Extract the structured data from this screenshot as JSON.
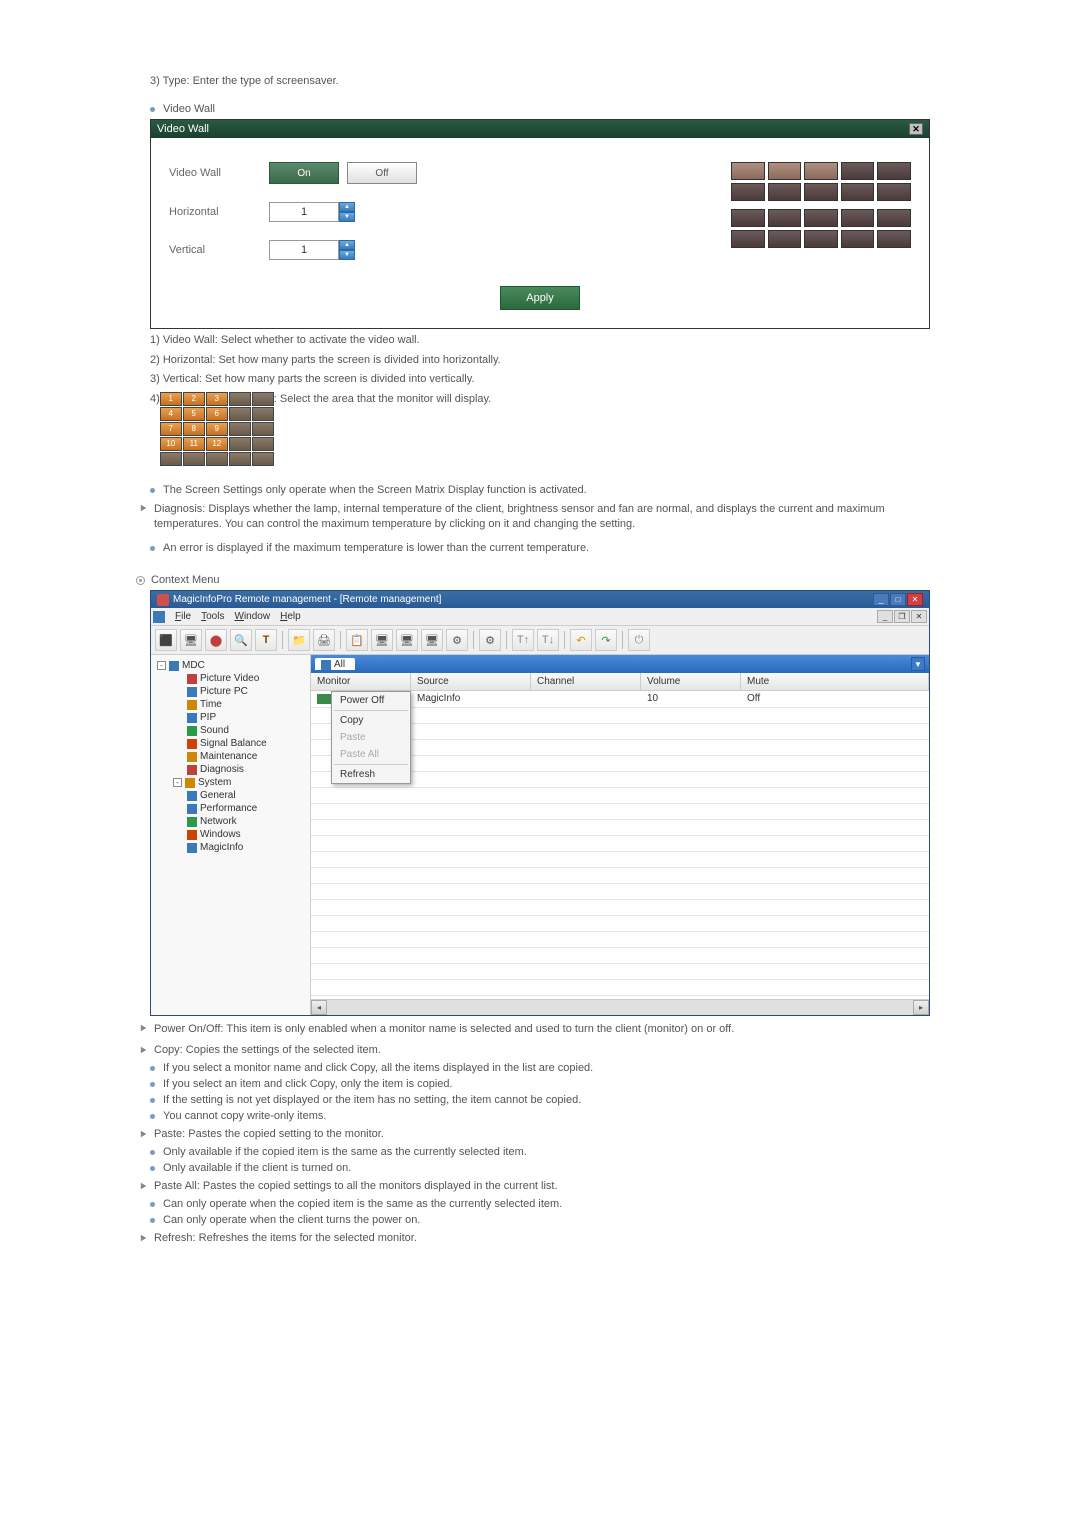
{
  "intro_text": "3) Type: Enter the type of screensaver.",
  "video_wall": {
    "section_label": "Video Wall",
    "dialog_title": "Video Wall",
    "label_vw": "Video Wall",
    "label_h": "Horizontal",
    "label_v": "Vertical",
    "btn_on": "On",
    "btn_off": "Off",
    "val_h": "1",
    "val_v": "1",
    "btn_apply": "Apply",
    "notes": {
      "n1": "1) Video Wall: Select whether to activate the video wall.",
      "n2": "2) Horizontal: Set how many parts the screen is divided into horizontally.",
      "n3": "3) Vertical: Set how many parts the screen is divided into vertically.",
      "n4_pre": "4) ",
      "n4_post": " : Select the area that the monitor will display."
    },
    "grid_numbers": [
      "1",
      "2",
      "3",
      "",
      "",
      "4",
      "5",
      "6",
      "",
      "",
      "7",
      "8",
      "9",
      "",
      "",
      "10",
      "11",
      "12",
      "",
      "",
      "",
      "",
      "",
      "",
      ""
    ],
    "grid_sel": [
      true,
      true,
      true,
      false,
      false,
      true,
      true,
      true,
      false,
      false,
      true,
      true,
      true,
      false,
      false,
      true,
      true,
      true,
      false,
      false,
      false,
      false,
      false,
      false,
      false
    ]
  },
  "screen_settings_note": "The Screen Settings only operate when the Screen Matrix Display function is activated.",
  "diagnosis": "Diagnosis: Displays whether the lamp, internal temperature of the client, brightness sensor and fan are normal, and displays the current and maximum temperatures. You can control the maximum temperature by clicking on it and changing the setting.",
  "diag_err": "An error is displayed if the maximum temperature is lower than the current temperature.",
  "context_menu": {
    "heading": "Context Menu",
    "app_title": "MagicInfoPro Remote management - [Remote management]",
    "menus": {
      "file": "File",
      "tools": "Tools",
      "window": "Window",
      "help": "Help"
    },
    "tree": {
      "root": "MDC",
      "items": [
        "Picture Video",
        "Picture PC",
        "Time",
        "PIP",
        "Sound",
        "Signal Balance",
        "Maintenance",
        "Diagnosis"
      ],
      "sys": "System",
      "sys_items": [
        "General",
        "Performance",
        "Network",
        "Windows",
        "MagicInfo"
      ]
    },
    "tab_all": "All",
    "cols": {
      "mon": "Monitor",
      "src": "Source",
      "ch": "Channel",
      "vol": "Volume",
      "mute": "Mute"
    },
    "row": {
      "src": "MagicInfo",
      "vol": "10",
      "mute": "Off"
    },
    "ctx_items": {
      "poweroff": "Power Off",
      "copy": "Copy",
      "paste": "Paste",
      "pasteall": "Paste All",
      "refresh": "Refresh"
    }
  },
  "cm_desc": {
    "power": "Power On/Off: This item is only enabled when a monitor name is selected and used to turn the client (monitor) on or off.",
    "copy": "Copy: Copies the settings of the selected item.",
    "copy_b1": "If you select a monitor name and click Copy, all the items displayed in the list are copied.",
    "copy_b2": "If you select an item and click Copy, only the item is copied.",
    "copy_b3": "If the setting is not yet displayed or the item has no setting, the item cannot be copied.",
    "copy_b4": "You cannot copy write-only items.",
    "paste": "Paste: Pastes the copied setting to the monitor.",
    "paste_b1": "Only available if the copied item is the same as the currently selected item.",
    "paste_b2": "Only available if the client is turned on.",
    "pasteall": "Paste All: Pastes the copied settings to all the monitors displayed in the current list.",
    "pasteall_b1": "Can only operate when the copied item is the same as the currently selected item.",
    "pasteall_b2": "Can only operate when the client turns the power on.",
    "refresh": "Refresh: Refreshes the items for the selected monitor."
  },
  "colors": {
    "bullet": "#7a9bbd",
    "green_dark": "#1a4030",
    "green_btn": "#3a7a4c"
  }
}
